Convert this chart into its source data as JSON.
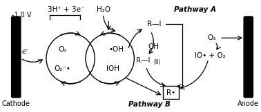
{
  "bg_color": "#ffffff",
  "labels": {
    "cathode": "Cathode",
    "anode": "Anode",
    "voltage": "-1.0 V",
    "electron": "e⁻",
    "O2": "O₂",
    "O2m": "O₂⁻•",
    "OH": "•OH",
    "IOH": "IOH",
    "RI": "R—I",
    "RI_II": "R—I",
    "II_label": "(II)",
    "OH2": "OH",
    "Rstar": "R•",
    "H3O": "3H⁺ + 3e⁻",
    "H2O": "H₂O",
    "O3": "O₃",
    "IO_O2": "IO• + O₂",
    "PathwayA": "Pathway A",
    "PathwayB": "Pathway B"
  },
  "fontsizes": {
    "electrode_label": 7,
    "voltage": 7,
    "species": 7.5,
    "pathway": 7.5,
    "electron": 7,
    "small": 5.5
  }
}
